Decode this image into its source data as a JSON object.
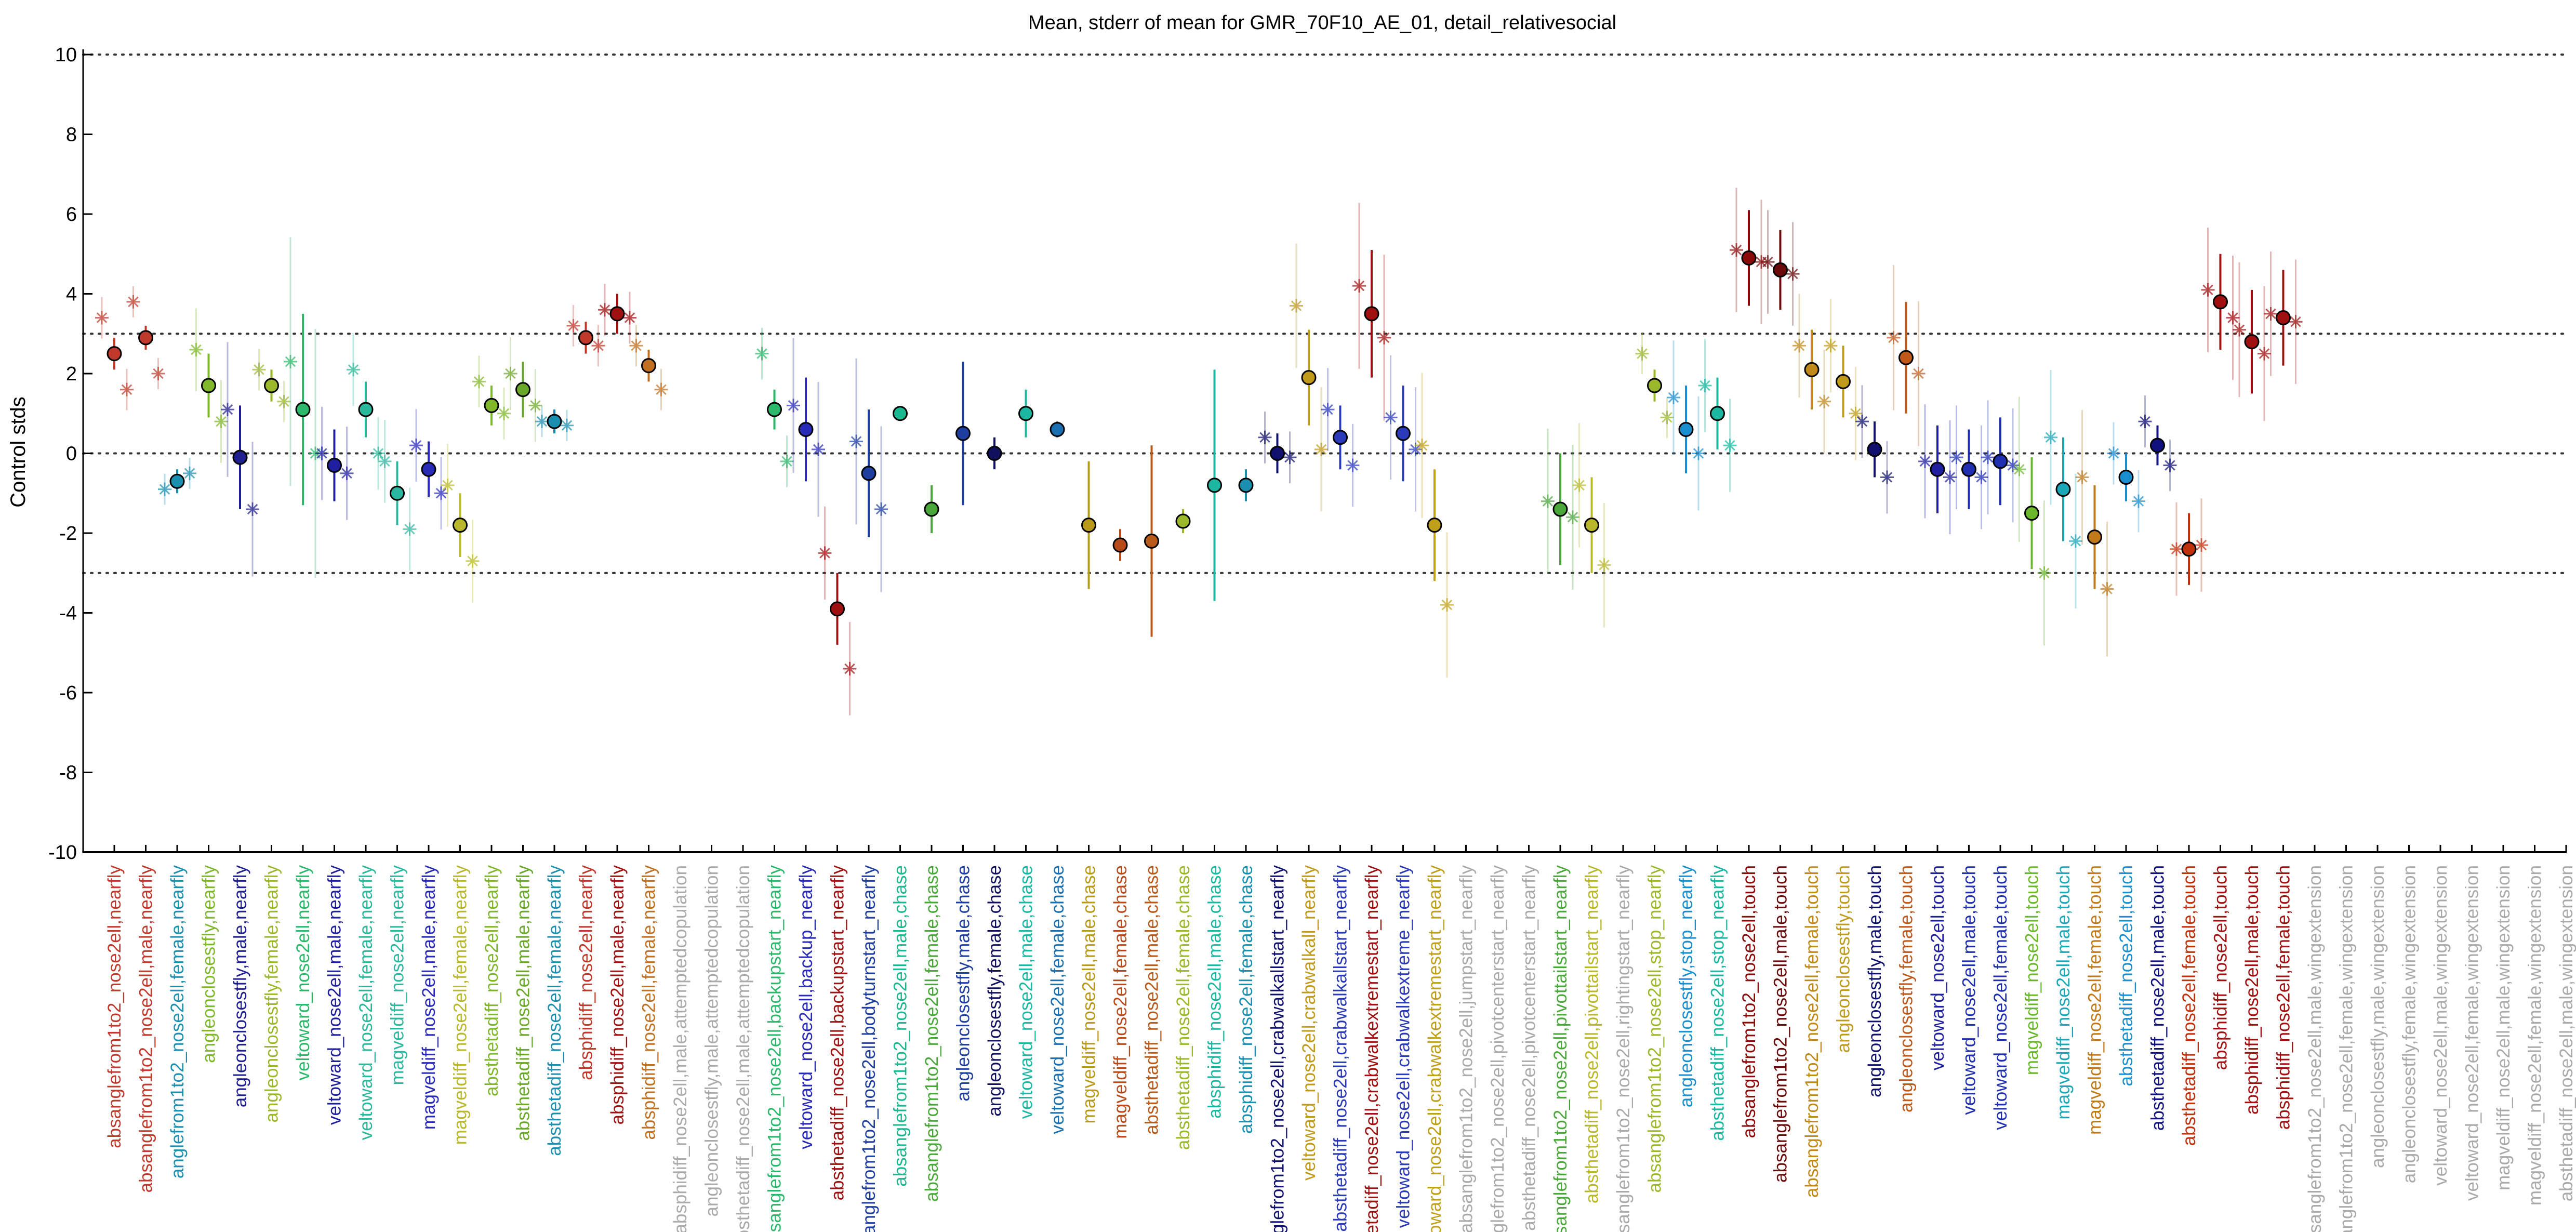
{
  "chart_data": {
    "type": "scatter",
    "title": "Mean, stderr of mean for GMR_70F10_AE_01, detail_relativesocial",
    "ylabel": "Control stds",
    "xlabel": "",
    "ylim": [
      -10,
      10
    ],
    "yticks": [
      10,
      8,
      6,
      4,
      2,
      0,
      -2,
      -4,
      -6,
      -8,
      -10
    ],
    "reference_lines": [
      10,
      3,
      0,
      -3,
      -10
    ],
    "grid": false,
    "categories": [
      {
        "label": "absanglefrom1to2_nose2ell,nearfly",
        "color": "#c0392b",
        "mean": 2.5,
        "err": 0.4,
        "points": [
          3.4,
          1.6
        ]
      },
      {
        "label": "absanglefrom1to2_nose2ell,male,nearfly",
        "color": "#c0392b",
        "mean": 2.9,
        "err": 0.3,
        "points": [
          3.8,
          2.0
        ]
      },
      {
        "label": "anglefrom1to2_nose2ell,female,nearfly",
        "color": "#1a8fb0",
        "mean": -0.7,
        "err": 0.3,
        "points": [
          -0.9,
          -0.5
        ]
      },
      {
        "label": "angleonclosestfly,nearfly",
        "color": "#7fb82a",
        "mean": 1.7,
        "err": 0.8,
        "points": [
          2.6,
          0.8
        ]
      },
      {
        "label": "angleonclosestfly,male,nearfly",
        "color": "#1f1f8f",
        "mean": -0.1,
        "err": 1.3,
        "points": [
          1.1,
          -1.4
        ]
      },
      {
        "label": "angleonclosestfly,female,nearfly",
        "color": "#9ab82a",
        "mean": 1.7,
        "err": 0.4,
        "points": [
          2.1,
          1.3
        ]
      },
      {
        "label": "veltoward_nose2ell,nearfly",
        "color": "#2ab86a",
        "mean": 1.1,
        "err": 2.4,
        "points": [
          2.3,
          0.0
        ]
      },
      {
        "label": "veltoward_nose2ell,male,nearfly",
        "color": "#1f1f9f",
        "mean": -0.3,
        "err": 0.9,
        "points": [
          0.0,
          -0.5
        ]
      },
      {
        "label": "veltoward_nose2ell,female,nearfly",
        "color": "#2ab89a",
        "mean": 1.1,
        "err": 0.7,
        "points": [
          2.1,
          0.0
        ]
      },
      {
        "label": "magveldiff_nose2ell,nearfly",
        "color": "#2ab8a0",
        "mean": -1.0,
        "err": 0.8,
        "points": [
          -0.2,
          -1.9
        ]
      },
      {
        "label": "magveldiff_nose2ell,male,nearfly",
        "color": "#2a2ab8",
        "mean": -0.4,
        "err": 0.7,
        "points": [
          0.2,
          -1.0
        ]
      },
      {
        "label": "magveldiff_nose2ell,female,nearfly",
        "color": "#b8b82a",
        "mean": -1.8,
        "err": 0.8,
        "points": [
          -0.8,
          -2.7
        ]
      },
      {
        "label": "absthetadiff_nose2ell,nearfly",
        "color": "#7fb82a",
        "mean": 1.2,
        "err": 0.5,
        "points": [
          1.8,
          1.0
        ]
      },
      {
        "label": "absthetadiff_nose2ell,male,nearfly",
        "color": "#6aa82a",
        "mean": 1.6,
        "err": 0.7,
        "points": [
          2.0,
          1.2
        ]
      },
      {
        "label": "absthetadiff_nose2ell,female,nearfly",
        "color": "#1a8fb0",
        "mean": 0.8,
        "err": 0.3,
        "points": [
          0.8,
          0.7
        ]
      },
      {
        "label": "absphidiff_nose2ell,nearfly",
        "color": "#c0392b",
        "mean": 2.9,
        "err": 0.4,
        "points": [
          3.2,
          2.7
        ]
      },
      {
        "label": "absphidiff_nose2ell,male,nearfly",
        "color": "#a01010",
        "mean": 3.5,
        "err": 0.5,
        "points": [
          3.6,
          3.4
        ]
      },
      {
        "label": "absphidiff_nose2ell,female,nearfly",
        "color": "#c07020",
        "mean": 2.2,
        "err": 0.4,
        "points": [
          2.7,
          1.6
        ]
      },
      {
        "label": "absphidiff_nose2ell,male,attemptedcopulation",
        "color": "#aaaaaa",
        "mean": null,
        "err": null,
        "points": []
      },
      {
        "label": "angleonclosestfly,male,attemptedcopulation",
        "color": "#aaaaaa",
        "mean": null,
        "err": null,
        "points": []
      },
      {
        "label": "absthetadiff_nose2ell,male,attemptedcopulation",
        "color": "#aaaaaa",
        "mean": null,
        "err": null,
        "points": []
      },
      {
        "label": "absanglefrom1to2_nose2ell,backupstart_nearfly",
        "color": "#2ab86a",
        "mean": 1.1,
        "err": 0.5,
        "points": [
          2.5,
          -0.2
        ]
      },
      {
        "label": "veltoward_nose2ell,backup_nearfly",
        "color": "#2a2ab8",
        "mean": 0.6,
        "err": 1.3,
        "points": [
          1.2,
          0.1
        ]
      },
      {
        "label": "absthetadiff_nose2ell,backupstart_nearfly",
        "color": "#a01010",
        "mean": -3.9,
        "err": 0.9,
        "points": [
          -2.5,
          -5.4
        ]
      },
      {
        "label": "absanglefrom1to2_nose2ell,bodyturnstart_nearfly",
        "color": "#1f3fa0",
        "mean": -0.5,
        "err": 1.6,
        "points": [
          0.3,
          -1.4
        ]
      },
      {
        "label": "absanglefrom1to2_nose2ell,male,chase",
        "color": "#1ab890",
        "mean": 1.0,
        "err": 0.1,
        "points": []
      },
      {
        "label": "absanglefrom1to2_nose2ell,female,chase",
        "color": "#4aa83a",
        "mean": -1.4,
        "err": 0.6,
        "points": []
      },
      {
        "label": "angleonclosestfly,male,chase",
        "color": "#1f3fa0",
        "mean": 0.5,
        "err": 1.8,
        "points": []
      },
      {
        "label": "angleonclosestfly,female,chase",
        "color": "#10105f",
        "mean": 0.0,
        "err": 0.4,
        "points": []
      },
      {
        "label": "veltoward_nose2ell,male,chase",
        "color": "#1ab8a0",
        "mean": 1.0,
        "err": 0.6,
        "points": []
      },
      {
        "label": "veltoward_nose2ell,female,chase",
        "color": "#1a6fb0",
        "mean": 0.6,
        "err": 0.2,
        "points": []
      },
      {
        "label": "magveldiff_nose2ell,male,chase",
        "color": "#b89a1a",
        "mean": -1.8,
        "err": 1.6,
        "points": []
      },
      {
        "label": "magveldiff_nose2ell,female,chase",
        "color": "#b84a1a",
        "mean": -2.3,
        "err": 0.4,
        "points": []
      },
      {
        "label": "absthetadiff_nose2ell,male,chase",
        "color": "#b85a1a",
        "mean": -2.2,
        "err": 2.4,
        "points": []
      },
      {
        "label": "absthetadiff_nose2ell,female,chase",
        "color": "#9ab82a",
        "mean": -1.7,
        "err": 0.3,
        "points": []
      },
      {
        "label": "absphidiff_nose2ell,male,chase",
        "color": "#1ab8a0",
        "mean": -0.8,
        "err": 2.9,
        "points": []
      },
      {
        "label": "absphidiff_nose2ell,female,chase",
        "color": "#1a8fb0",
        "mean": -0.8,
        "err": 0.4,
        "points": []
      },
      {
        "label": "absanglefrom1to2_nose2ell,crabwalkallstart_nearfly",
        "color": "#10106f",
        "mean": 0.0,
        "err": 0.5,
        "points": [
          0.4,
          -0.1
        ]
      },
      {
        "label": "veltoward_nose2ell,crabwalkall_nearfly",
        "color": "#c09a1a",
        "mean": 1.9,
        "err": 1.2,
        "points": [
          3.7,
          0.1
        ]
      },
      {
        "label": "absthetadiff_nose2ell,crabwalkallstart_nearfly",
        "color": "#2a3ab8",
        "mean": 0.4,
        "err": 0.8,
        "points": [
          1.1,
          -0.3
        ]
      },
      {
        "label": "absthetadiff_nose2ell,crabwalkextremestart_nearfly",
        "color": "#a01010",
        "mean": 3.5,
        "err": 1.6,
        "points": [
          4.2,
          2.9
        ]
      },
      {
        "label": "veltoward_nose2ell,crabwalkextreme_nearfly",
        "color": "#2a3ab8",
        "mean": 0.5,
        "err": 1.2,
        "points": [
          0.9,
          0.1
        ]
      },
      {
        "label": "veltoward_nose2ell,crabwalkextremestart_nearfly",
        "color": "#c0a01a",
        "mean": -1.8,
        "err": 1.4,
        "points": [
          0.2,
          -3.8
        ]
      },
      {
        "label": "absanglefrom1to2_nose2ell,jumpstart_nearfly",
        "color": "#aaaaaa",
        "mean": null,
        "err": null,
        "points": []
      },
      {
        "label": "absanglefrom1to2_nose2ell,pivotcenterstart_nearfly",
        "color": "#aaaaaa",
        "mean": null,
        "err": null,
        "points": []
      },
      {
        "label": "absthetadiff_nose2ell,pivotcenterstart_nearfly",
        "color": "#aaaaaa",
        "mean": null,
        "err": null,
        "points": []
      },
      {
        "label": "absanglefrom1to2_nose2ell,pivottailstart_nearfly",
        "color": "#4aa83a",
        "mean": -1.4,
        "err": 1.4,
        "points": [
          -1.2,
          -1.6
        ]
      },
      {
        "label": "absthetadiff_nose2ell,pivottailstart_nearfly",
        "color": "#b8b82a",
        "mean": -1.8,
        "err": 1.2,
        "points": [
          -0.8,
          -2.8
        ]
      },
      {
        "label": "absanglefrom1to2_nose2ell,rightingstart_nearfly",
        "color": "#aaaaaa",
        "mean": null,
        "err": null,
        "points": []
      },
      {
        "label": "absanglefrom1to2_nose2ell,stop_nearfly",
        "color": "#9ab82a",
        "mean": 1.7,
        "err": 0.4,
        "points": [
          2.5,
          0.9
        ]
      },
      {
        "label": "angleonclosestfly,stop_nearfly",
        "color": "#1a8fd0",
        "mean": 0.6,
        "err": 1.1,
        "points": [
          1.4,
          0.0
        ]
      },
      {
        "label": "absthetadiff_nose2ell,stop_nearfly",
        "color": "#1ab8a0",
        "mean": 1.0,
        "err": 0.9,
        "points": [
          1.7,
          0.2
        ]
      },
      {
        "label": "absanglefrom1to2_nose2ell,touch",
        "color": "#8a0a0a",
        "mean": 4.9,
        "err": 1.2,
        "points": [
          5.1,
          4.8
        ]
      },
      {
        "label": "absanglefrom1to2_nose2ell,male,touch",
        "color": "#6a0a0a",
        "mean": 4.6,
        "err": 1.0,
        "points": [
          4.8,
          4.5
        ]
      },
      {
        "label": "absanglefrom1to2_nose2ell,female,touch",
        "color": "#c08a1a",
        "mean": 2.1,
        "err": 1.0,
        "points": [
          2.7,
          1.3
        ]
      },
      {
        "label": "angleonclosestfly,touch",
        "color": "#c09a1a",
        "mean": 1.8,
        "err": 0.9,
        "points": [
          2.7,
          1.0
        ]
      },
      {
        "label": "angleonclosestfly,male,touch",
        "color": "#10106f",
        "mean": 0.1,
        "err": 0.7,
        "points": [
          0.8,
          -0.6
        ]
      },
      {
        "label": "angleonclosestfly,female,touch",
        "color": "#c0581a",
        "mean": 2.4,
        "err": 1.4,
        "points": [
          2.9,
          2.0
        ]
      },
      {
        "label": "veltoward_nose2ell,touch",
        "color": "#1f1f9f",
        "mean": -0.4,
        "err": 1.1,
        "points": [
          -0.2,
          -0.6
        ]
      },
      {
        "label": "veltoward_nose2ell,male,touch",
        "color": "#1f2fb0",
        "mean": -0.4,
        "err": 1.0,
        "points": [
          -0.1,
          -0.6
        ]
      },
      {
        "label": "veltoward_nose2ell,female,touch",
        "color": "#1f2fb0",
        "mean": -0.2,
        "err": 1.1,
        "points": [
          -0.1,
          -0.3
        ]
      },
      {
        "label": "magveldiff_nose2ell,touch",
        "color": "#6ab82a",
        "mean": -1.5,
        "err": 1.4,
        "points": [
          -0.4,
          -3.0
        ]
      },
      {
        "label": "magveldiff_nose2ell,male,touch",
        "color": "#1aa8b8",
        "mean": -0.9,
        "err": 1.3,
        "points": [
          0.4,
          -2.2
        ]
      },
      {
        "label": "magveldiff_nose2ell,female,touch",
        "color": "#c07a1a",
        "mean": -2.1,
        "err": 1.3,
        "points": [
          -0.6,
          -3.4
        ]
      },
      {
        "label": "absthetadiff_nose2ell,touch",
        "color": "#1a8fd0",
        "mean": -0.6,
        "err": 0.6,
        "points": [
          0.0,
          -1.2
        ]
      },
      {
        "label": "absthetadiff_nose2ell,male,touch",
        "color": "#10107f",
        "mean": 0.2,
        "err": 0.5,
        "points": [
          0.8,
          -0.3
        ]
      },
      {
        "label": "absthetadiff_nose2ell,female,touch",
        "color": "#c0300a",
        "mean": -2.4,
        "err": 0.9,
        "points": [
          -2.4,
          -2.3
        ]
      },
      {
        "label": "absphidiff_nose2ell,touch",
        "color": "#a01010",
        "mean": 3.8,
        "err": 1.2,
        "points": [
          4.1,
          3.4
        ]
      },
      {
        "label": "absphidiff_nose2ell,male,touch",
        "color": "#a01010",
        "mean": 2.8,
        "err": 1.3,
        "points": [
          3.1,
          2.5
        ]
      },
      {
        "label": "absphidiff_nose2ell,female,touch",
        "color": "#a01010",
        "mean": 3.4,
        "err": 1.2,
        "points": [
          3.5,
          3.3
        ]
      },
      {
        "label": "absanglefrom1to2_nose2ell,male,wingextension",
        "color": "#aaaaaa",
        "mean": null,
        "err": null,
        "points": []
      },
      {
        "label": "absanglefrom1to2_nose2ell,female,wingextension",
        "color": "#aaaaaa",
        "mean": null,
        "err": null,
        "points": []
      },
      {
        "label": "angleonclosestfly,male,wingextension",
        "color": "#aaaaaa",
        "mean": null,
        "err": null,
        "points": []
      },
      {
        "label": "angleonclosestfly,female,wingextension",
        "color": "#aaaaaa",
        "mean": null,
        "err": null,
        "points": []
      },
      {
        "label": "veltoward_nose2ell,male,wingextension",
        "color": "#aaaaaa",
        "mean": null,
        "err": null,
        "points": []
      },
      {
        "label": "veltoward_nose2ell,female,wingextension",
        "color": "#aaaaaa",
        "mean": null,
        "err": null,
        "points": []
      },
      {
        "label": "magveldiff_nose2ell,male,wingextension",
        "color": "#aaaaaa",
        "mean": null,
        "err": null,
        "points": []
      },
      {
        "label": "magveldiff_nose2ell,female,wingextension",
        "color": "#aaaaaa",
        "mean": null,
        "err": null,
        "points": []
      },
      {
        "label": "absthetadiff_nose2ell,male,wingextension",
        "color": "#aaaaaa",
        "mean": null,
        "err": null,
        "points": []
      },
      {
        "label": "absthetadiff_nose2ell,female,wingextension",
        "color": "#aaaaaa",
        "mean": null,
        "err": null,
        "points": []
      },
      {
        "label": "absphidiff_nose2ell,male,wingextension",
        "color": "#aaaaaa",
        "mean": null,
        "err": null,
        "points": []
      },
      {
        "label": "absphidiff_nose2ell,female,wingextension",
        "color": "#aaaaaa",
        "mean": null,
        "err": null,
        "points": []
      }
    ]
  }
}
